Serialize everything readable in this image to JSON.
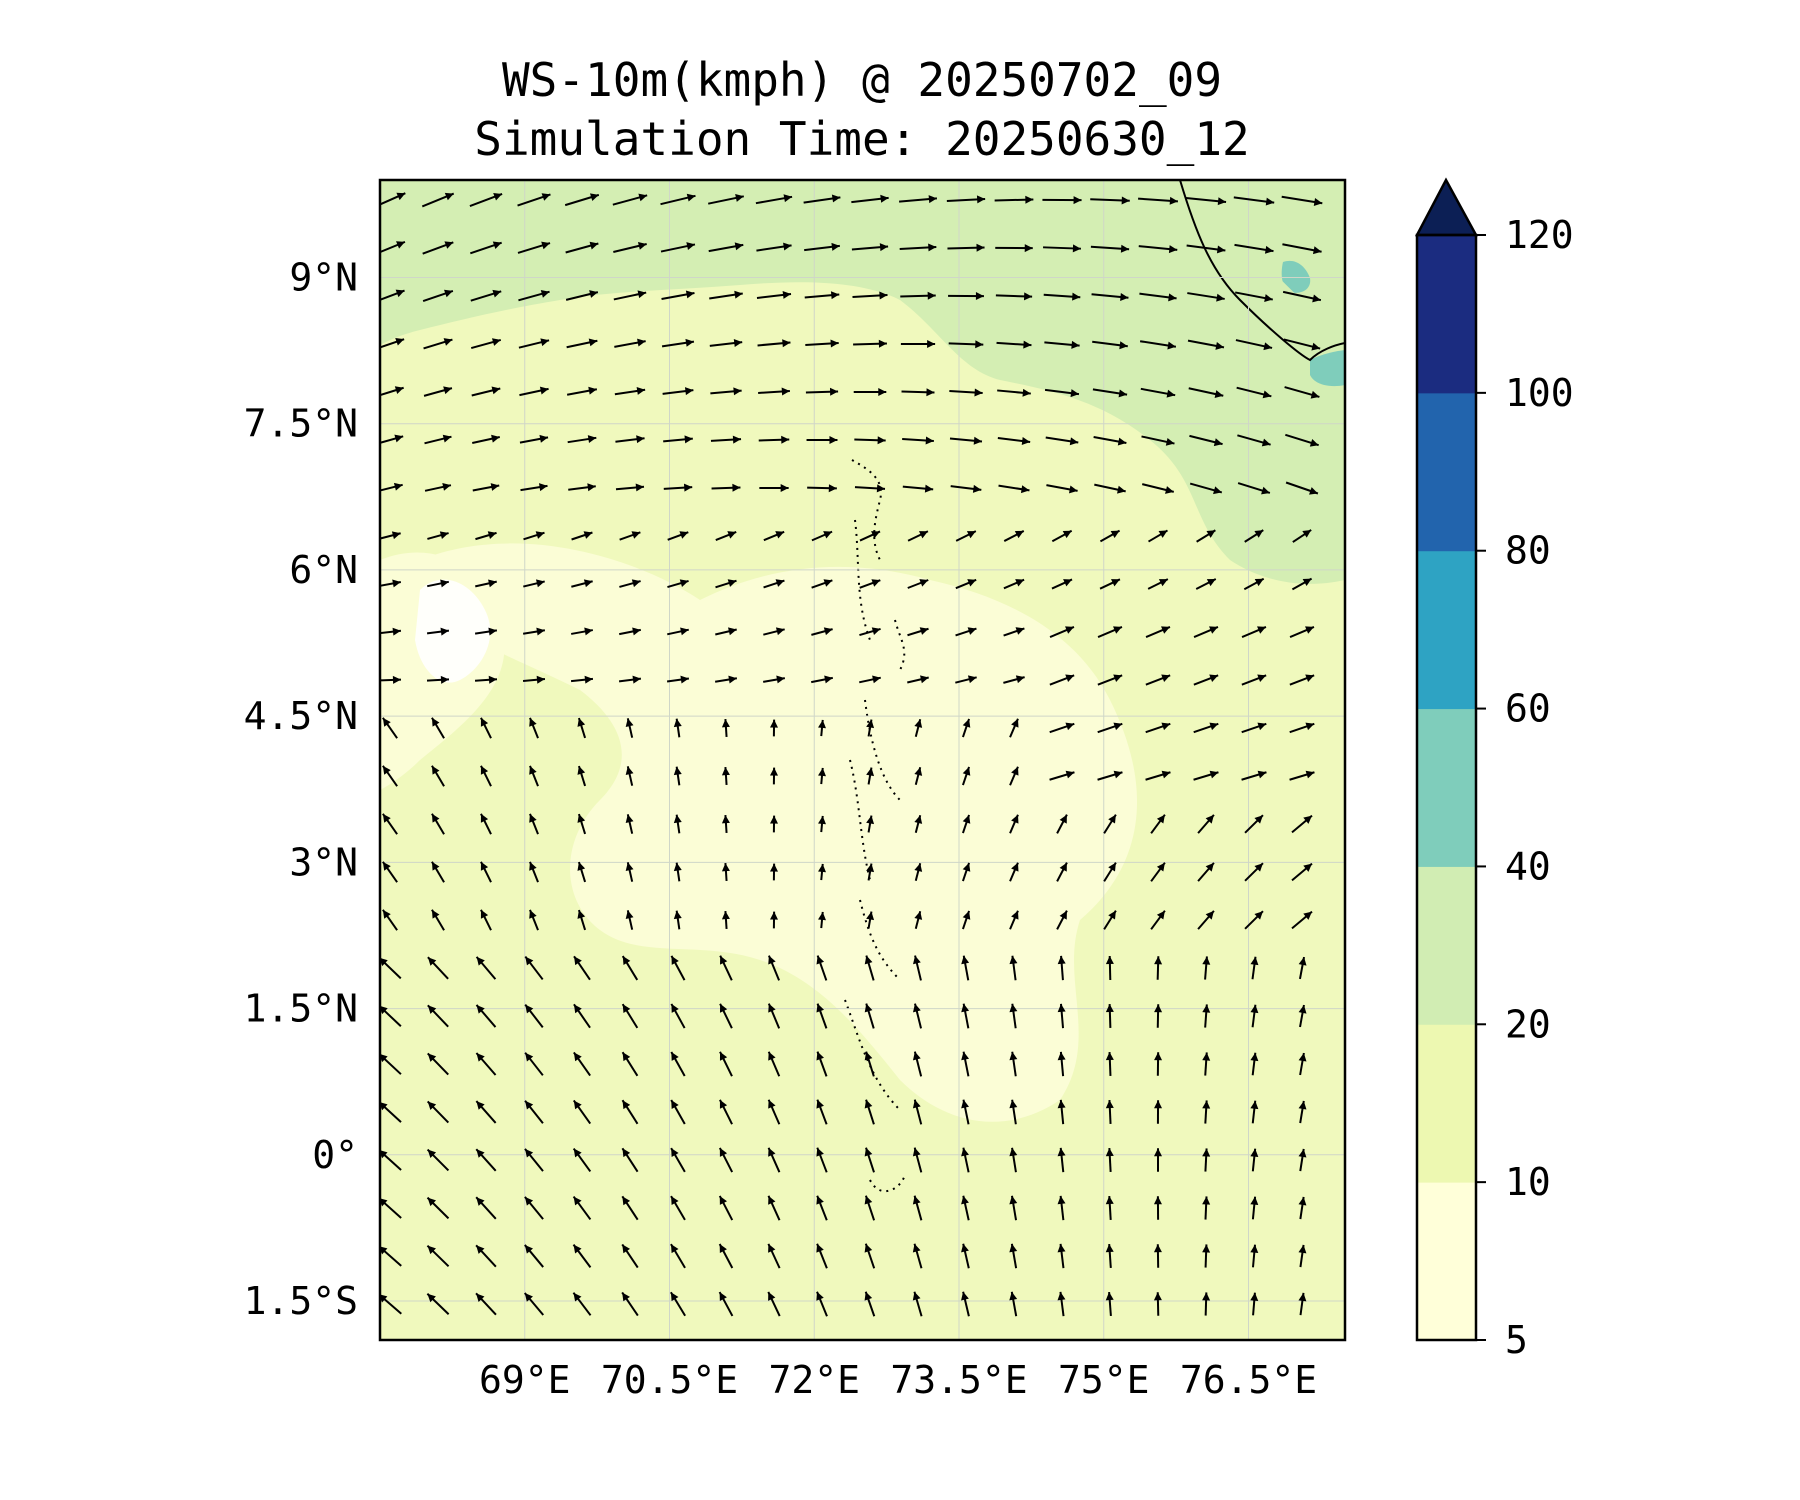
{
  "figure": {
    "title_line1": "WS-10m(kmph) @ 20250702_09",
    "title_line2": "Simulation Time: 20250630_12"
  },
  "map": {
    "lon_range": [
      67.5,
      77.5
    ],
    "lat_range": [
      -1.9,
      10.0
    ],
    "x_ticks": [
      {
        "value": 69,
        "label": "69°E"
      },
      {
        "value": 70.5,
        "label": "70.5°E"
      },
      {
        "value": 72,
        "label": "72°E"
      },
      {
        "value": 73.5,
        "label": "73.5°E"
      },
      {
        "value": 75,
        "label": "75°E"
      },
      {
        "value": 76.5,
        "label": "76.5°E"
      }
    ],
    "y_ticks": [
      {
        "value": 9,
        "label": "9°N"
      },
      {
        "value": 7.5,
        "label": "7.5°N"
      },
      {
        "value": 6,
        "label": "6°N"
      },
      {
        "value": 4.5,
        "label": "4.5°N"
      },
      {
        "value": 3,
        "label": "3°N"
      },
      {
        "value": 1.5,
        "label": "1.5°N"
      },
      {
        "value": 0,
        "label": "0°"
      },
      {
        "value": -1.5,
        "label": "1.5°S"
      }
    ],
    "gridlines": true,
    "variable": "10 m wind speed (kmph) with wind vectors",
    "background_band": "10–20"
  },
  "colorbar": {
    "levels": [
      5,
      10,
      20,
      40,
      60,
      80,
      100,
      120
    ],
    "labels": [
      "5",
      "10",
      "20",
      "40",
      "60",
      "80",
      "100",
      "120"
    ],
    "colors": [
      "#ffffd9",
      "#edf8b1",
      "#d1edb3",
      "#7fcdbb",
      "#2ea3c3",
      "#2264ad",
      "#1b2c80"
    ],
    "extend_color": "#0c1f55",
    "extend": "max"
  }
}
